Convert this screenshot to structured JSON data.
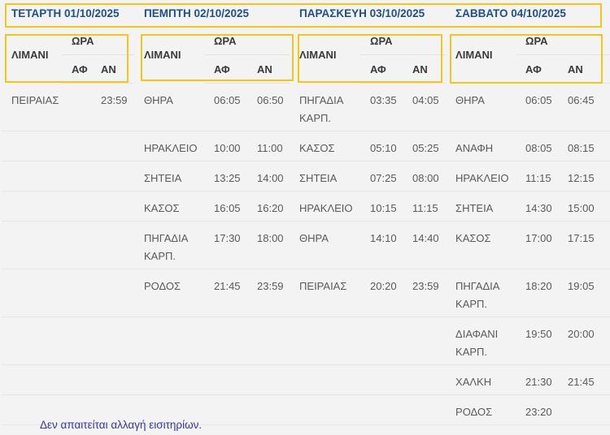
{
  "days": [
    {
      "title": "ΤΕΤΑΡΤΗ 01/10/2025"
    },
    {
      "title": "ΠΕΜΠΤΗ 02/10/2025"
    },
    {
      "title": "ΠΑΡΑΣΚΕΥΗ 03/10/2025"
    },
    {
      "title": "ΣΑΒΒΑΤΟ 04/10/2025"
    }
  ],
  "headers": {
    "port": "ΛΙΜΑΝΙ",
    "time": "ΩΡΑ",
    "dep": "ΑΦ",
    "arr": "ΑΝ"
  },
  "rows": [
    [
      {
        "port": "ΠΕΙΡΑΙΑΣ",
        "dep": "",
        "arr": "23:59"
      },
      {
        "port": "ΘΗΡΑ",
        "dep": "06:05",
        "arr": "06:50"
      },
      {
        "port": "ΠΗΓΑΔΙΑ ΚΑΡΠ.",
        "dep": "03:35",
        "arr": "04:05"
      },
      {
        "port": "ΘΗΡΑ",
        "dep": "06:05",
        "arr": "06:45"
      }
    ],
    [
      {
        "port": "",
        "dep": "",
        "arr": ""
      },
      {
        "port": "ΗΡΑΚΛΕΙΟ",
        "dep": "10:00",
        "arr": "11:00"
      },
      {
        "port": "ΚΑΣΟΣ",
        "dep": "05:10",
        "arr": "05:25"
      },
      {
        "port": "ΑΝΑΦΗ",
        "dep": "08:05",
        "arr": "08:15"
      }
    ],
    [
      {
        "port": "",
        "dep": "",
        "arr": ""
      },
      {
        "port": "ΣΗΤΕΙΑ",
        "dep": "13:25",
        "arr": "14:00"
      },
      {
        "port": "ΣΗΤΕΙΑ",
        "dep": "07:25",
        "arr": "08:00"
      },
      {
        "port": "ΗΡΑΚΛΕΙΟ",
        "dep": "11:15",
        "arr": "12:15"
      }
    ],
    [
      {
        "port": "",
        "dep": "",
        "arr": ""
      },
      {
        "port": "ΚΑΣΟΣ",
        "dep": "16:05",
        "arr": "16:20"
      },
      {
        "port": "ΗΡΑΚΛΕΙΟ",
        "dep": "10:15",
        "arr": "11:15"
      },
      {
        "port": "ΣΗΤΕΙΑ",
        "dep": "14:30",
        "arr": "15:00"
      }
    ],
    [
      {
        "port": "",
        "dep": "",
        "arr": ""
      },
      {
        "port": "ΠΗΓΑΔΙΑ ΚΑΡΠ.",
        "dep": "17:30",
        "arr": "18:00"
      },
      {
        "port": "ΘΗΡΑ",
        "dep": "14:10",
        "arr": "14:40"
      },
      {
        "port": "ΚΑΣΟΣ",
        "dep": "17:00",
        "arr": "17:15"
      }
    ],
    [
      {
        "port": "",
        "dep": "",
        "arr": ""
      },
      {
        "port": "ΡΟΔΟΣ",
        "dep": "21:45",
        "arr": "23:59"
      },
      {
        "port": "ΠΕΙΡΑΙΑΣ",
        "dep": "20:20",
        "arr": "23:59"
      },
      {
        "port": "ΠΗΓΑΔΙΑ ΚΑΡΠ.",
        "dep": "18:20",
        "arr": "19:05"
      }
    ],
    [
      {
        "port": "",
        "dep": "",
        "arr": ""
      },
      {
        "port": "",
        "dep": "",
        "arr": ""
      },
      {
        "port": "",
        "dep": "",
        "arr": ""
      },
      {
        "port": "ΔΙΑΦΑΝΙ ΚΑΡΠ.",
        "dep": "19:50",
        "arr": "20:00"
      }
    ],
    [
      {
        "port": "",
        "dep": "",
        "arr": ""
      },
      {
        "port": "",
        "dep": "",
        "arr": ""
      },
      {
        "port": "",
        "dep": "",
        "arr": ""
      },
      {
        "port": "ΧΑΛΚΗ",
        "dep": "21:30",
        "arr": "21:45"
      }
    ],
    [
      {
        "port": "",
        "dep": "",
        "arr": ""
      },
      {
        "port": "",
        "dep": "",
        "arr": ""
      },
      {
        "port": "",
        "dep": "",
        "arr": ""
      },
      {
        "port": "ΡΟΔΟΣ",
        "dep": "23:20",
        "arr": ""
      }
    ]
  ],
  "footer": "Δεν απαιτείται αλλαγή εισιτηρίων.",
  "colors": {
    "day_title": "#1d4f8f",
    "footer": "#3535a5",
    "highlight": "#f5c518"
  }
}
